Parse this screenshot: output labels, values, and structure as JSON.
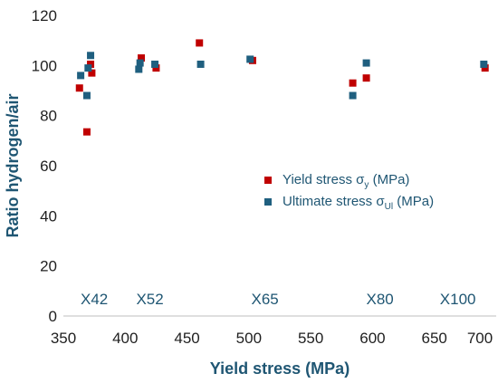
{
  "chart_data": {
    "type": "scatter",
    "title": "",
    "xlabel": "Yield stress (MPa)",
    "ylabel": "Ratio hydrogen/air",
    "xlim": [
      350,
      700
    ],
    "ylim": [
      0,
      120
    ],
    "xticks": [
      "350",
      "400",
      "450",
      "500",
      "550",
      "600",
      "650",
      "700"
    ],
    "yticks": [
      "0",
      "20",
      "40",
      "60",
      "80",
      "100",
      "120"
    ],
    "grid": false,
    "legend_position": "right-middle",
    "series": [
      {
        "name": "Yield stress σ",
        "name_subscript": "y",
        "name_suffix": " (MPa)",
        "color": "#c00000",
        "marker": "square",
        "points": [
          {
            "x": 363,
            "y": 91
          },
          {
            "x": 369,
            "y": 73.5
          },
          {
            "x": 372,
            "y": 100.5
          },
          {
            "x": 373,
            "y": 97
          },
          {
            "x": 413,
            "y": 103
          },
          {
            "x": 425,
            "y": 99
          },
          {
            "x": 460,
            "y": 109
          },
          {
            "x": 503,
            "y": 102
          },
          {
            "x": 584,
            "y": 93
          },
          {
            "x": 595,
            "y": 95
          },
          {
            "x": 691,
            "y": 99
          }
        ]
      },
      {
        "name": "Ultimate stress σ",
        "name_subscript": "Ul",
        "name_suffix": " (MPa)",
        "color": "#1f5f7f",
        "marker": "square",
        "points": [
          {
            "x": 364,
            "y": 96
          },
          {
            "x": 369,
            "y": 88
          },
          {
            "x": 370,
            "y": 99
          },
          {
            "x": 372,
            "y": 104
          },
          {
            "x": 411,
            "y": 98.5
          },
          {
            "x": 412,
            "y": 101
          },
          {
            "x": 424,
            "y": 100.5
          },
          {
            "x": 461,
            "y": 100.5
          },
          {
            "x": 501,
            "y": 102.5
          },
          {
            "x": 584,
            "y": 88
          },
          {
            "x": 595,
            "y": 101
          },
          {
            "x": 690,
            "y": 100.5
          }
        ]
      }
    ],
    "annotations": [
      {
        "text": "X42",
        "x": 375,
        "y": 6.5
      },
      {
        "text": "X52",
        "x": 420,
        "y": 6.5
      },
      {
        "text": "X65",
        "x": 513,
        "y": 6.5
      },
      {
        "text": "X80",
        "x": 606,
        "y": 6.5
      },
      {
        "text": "X100",
        "x": 669,
        "y": 6.5
      }
    ]
  }
}
